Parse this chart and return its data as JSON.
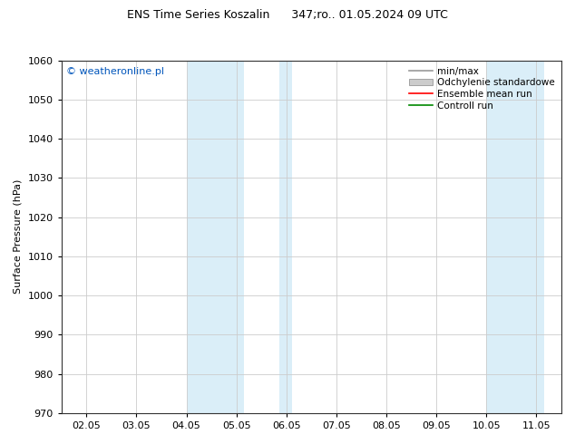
{
  "title": "ENS Time Series Koszalin      347;ro.. 01.05.2024 09 UTC",
  "ylabel": "Surface Pressure (hPa)",
  "ylim": [
    970,
    1060
  ],
  "yticks": [
    970,
    980,
    990,
    1000,
    1010,
    1020,
    1030,
    1040,
    1050,
    1060
  ],
  "xtick_labels": [
    "02.05",
    "03.05",
    "04.05",
    "05.05",
    "06.05",
    "07.05",
    "08.05",
    "09.05",
    "10.05",
    "11.05"
  ],
  "shaded_regions": [
    {
      "xmin": 3.0,
      "xmax": 4.15,
      "color": "#daeef8"
    },
    {
      "xmin": 4.85,
      "xmax": 5.12,
      "color": "#daeef8"
    },
    {
      "xmin": 9.0,
      "xmax": 10.15,
      "color": "#daeef8"
    }
  ],
  "watermark": "© weatheronline.pl",
  "watermark_color": "#0055bb",
  "legend_items": [
    {
      "label": "min/max",
      "color": "#999999",
      "style": "line"
    },
    {
      "label": "Odchylenie standardowe",
      "color": "#cccccc",
      "style": "band"
    },
    {
      "label": "Ensemble mean run",
      "color": "#ff0000",
      "style": "line"
    },
    {
      "label": "Controll run",
      "color": "#008800",
      "style": "line"
    }
  ],
  "background_color": "#ffffff",
  "grid_color": "#cccccc",
  "spine_color": "#333333"
}
